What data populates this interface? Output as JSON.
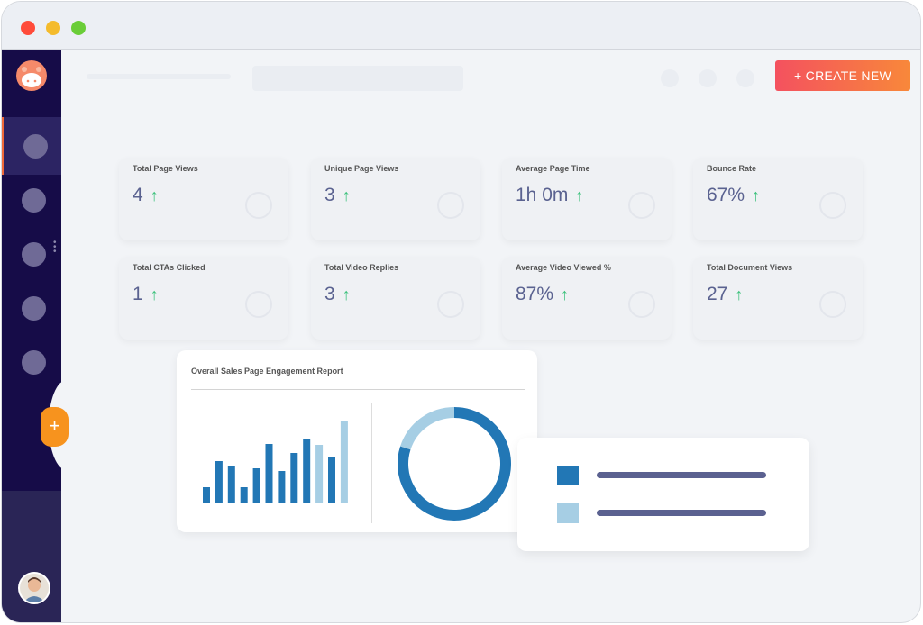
{
  "window": {
    "controls": [
      {
        "name": "close",
        "color": "#ff4b3a"
      },
      {
        "name": "minimize",
        "color": "#f4bb2c"
      },
      {
        "name": "maximize",
        "color": "#6acd38"
      }
    ]
  },
  "header": {
    "create_button": "+ CREATE NEW"
  },
  "colors": {
    "accent": "#f7931e",
    "sidebar": "#160c48",
    "trend_up": "#3ec27d",
    "bar_dark": "#2277b5",
    "bar_light": "#a6cee4"
  },
  "stats": [
    {
      "label": "Total Page Views",
      "value": "4",
      "trend": "up",
      "icon": "eye-icon"
    },
    {
      "label": "Unique Page Views",
      "value": "3",
      "trend": "up",
      "icon": "eye-icon"
    },
    {
      "label": "Average Page Time",
      "value": "1h 0m",
      "trend": "up",
      "icon": "clock-icon"
    },
    {
      "label": "Bounce Rate",
      "value": "67%",
      "trend": "up",
      "icon": "bar-chart-icon"
    },
    {
      "label": "Total CTAs Clicked",
      "value": "1",
      "trend": "up",
      "icon": "cursor-icon"
    },
    {
      "label": "Total Video Replies",
      "value": "3",
      "trend": "up",
      "icon": "reply-icon"
    },
    {
      "label": "Average Video Viewed %",
      "value": "87%",
      "trend": "up",
      "icon": "play-icon"
    },
    {
      "label": "Total Document Views",
      "value": "27",
      "trend": "up",
      "icon": "document-icon"
    }
  ],
  "report": {
    "title": "Overall Sales Page Engagement Report"
  },
  "chart_data": [
    {
      "type": "bar",
      "values": [
        18,
        47,
        41,
        18,
        39,
        66,
        36,
        56,
        71,
        65,
        52,
        91
      ],
      "highlight": [
        false,
        false,
        false,
        false,
        false,
        false,
        false,
        false,
        false,
        true,
        false,
        true
      ],
      "grid": false
    },
    {
      "type": "pie",
      "donut": true,
      "values": [
        80,
        20
      ],
      "colors": [
        "#2277b5",
        "#a6cee4"
      ]
    }
  ]
}
